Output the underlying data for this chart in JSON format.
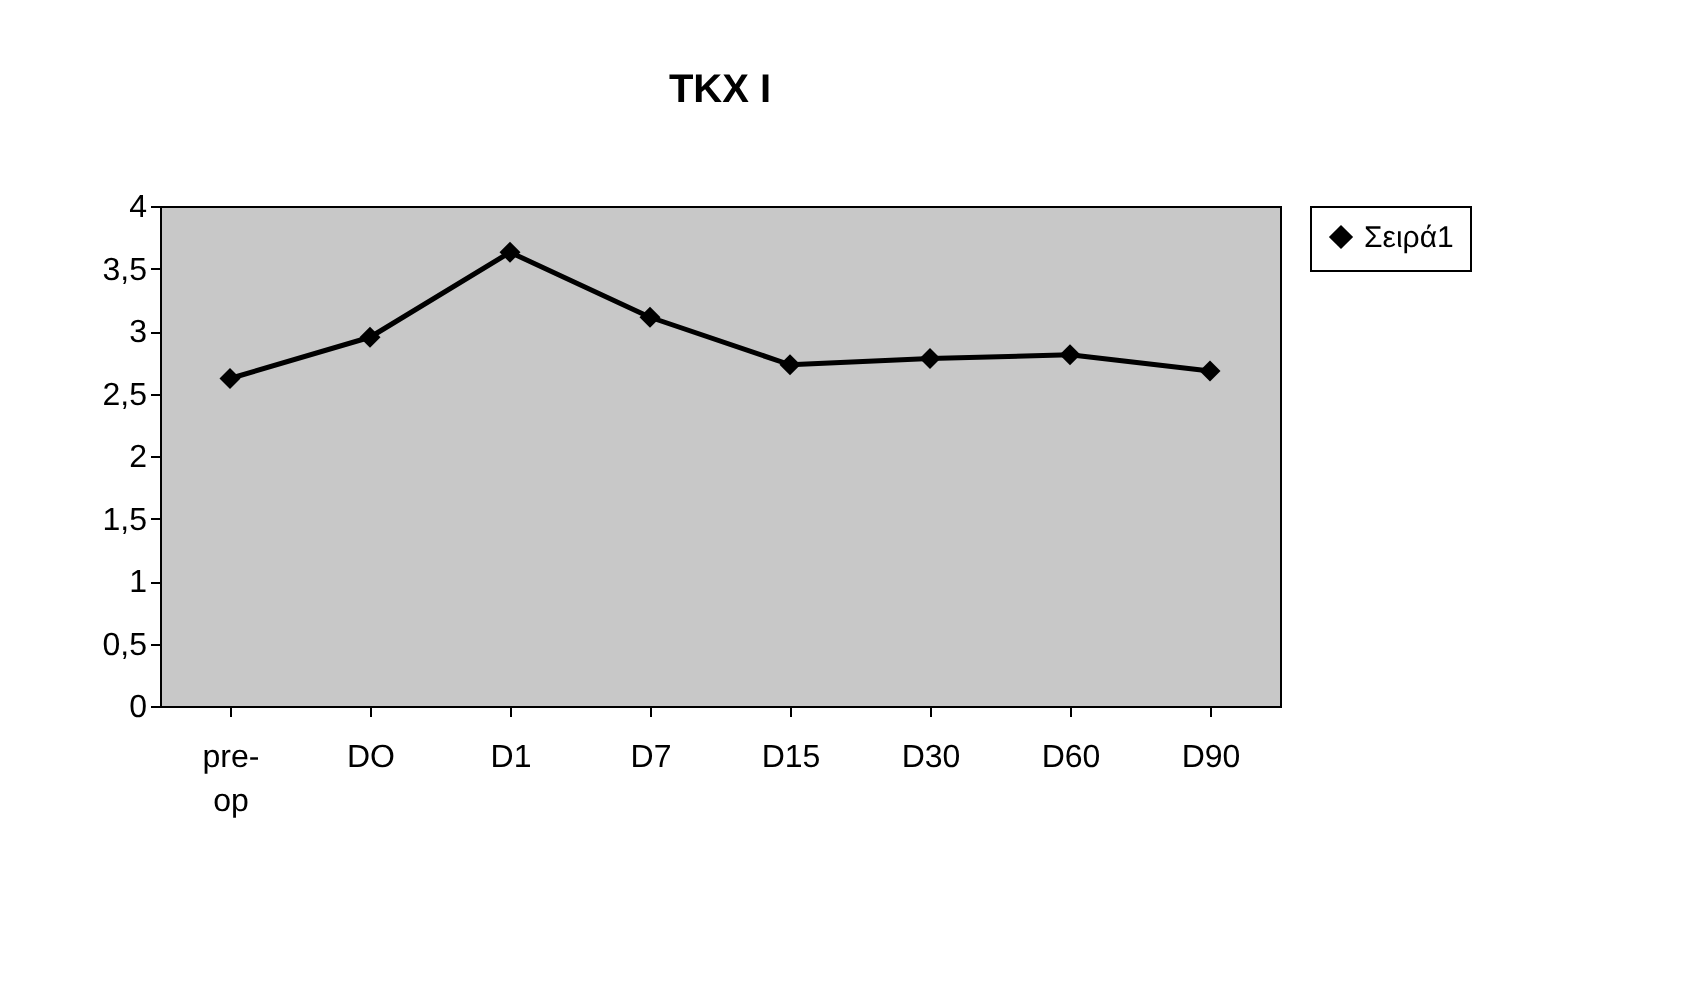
{
  "chart_data": {
    "type": "line",
    "title": "TKX I",
    "categories": [
      "pre- op",
      "DO",
      "D1",
      "D7",
      "D15",
      "D30",
      "D60",
      "D90"
    ],
    "series": [
      {
        "name": "Σειρά1",
        "color": "#000000",
        "values": [
          2.62,
          2.95,
          3.63,
          3.11,
          2.73,
          2.78,
          2.81,
          2.68
        ]
      }
    ],
    "ylim": [
      0,
      4
    ],
    "yticks": [
      0,
      {
        "value": 0.5,
        "label": "0,5"
      },
      1,
      {
        "value": 1.5,
        "label": "1,5"
      },
      2,
      {
        "value": 2.5,
        "label": "2,5"
      },
      3,
      {
        "value": 3.5,
        "label": "3,5"
      },
      4
    ],
    "grid": false,
    "legend": "right",
    "marker": "diamond",
    "line_style": "solid"
  }
}
